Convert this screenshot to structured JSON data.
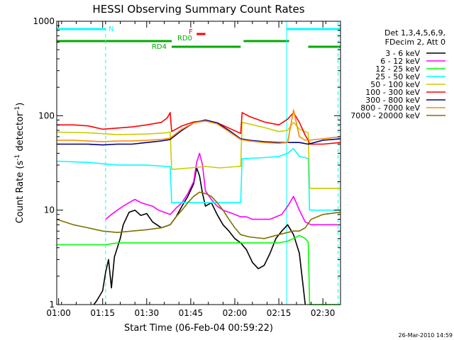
{
  "chart_data": {
    "type": "line",
    "title": "HESSI Observing Summary Count Rates",
    "xlabel": "Start Time (06-Feb-04 00:59:22)",
    "ylabel": "Count Rate (s⁻¹ detector⁻¹)",
    "ylabel_parts": [
      "Count Rate (s",
      "-1",
      " detector",
      "-1",
      ")"
    ],
    "y_scale": "log",
    "ylim": [
      1,
      1000
    ],
    "xlim": [
      "00:59:22",
      "02:36:00"
    ],
    "x_ticks": [
      "01:00",
      "01:15",
      "01:30",
      "01:45",
      "02:00",
      "02:15",
      "02:30"
    ],
    "y_ticks": [
      "1",
      "10",
      "100",
      "1000"
    ],
    "grid": false,
    "legend_position": "right",
    "legend_header": [
      "Det 1,3,4,5,6,9,",
      "FDecim 2, Att 0"
    ],
    "timestamp": "26-Mar-2010 14:59",
    "flags": [
      {
        "label": "N",
        "color": "#00ffff",
        "segments": [
          [
            "00:59:22",
            "01:16:00"
          ],
          [
            "02:17:40",
            "02:36:00"
          ]
        ]
      },
      {
        "label": "F",
        "color": "#ff0000",
        "segments": [
          [
            "01:47:00",
            "01:50:00"
          ]
        ]
      },
      {
        "label": "RD0",
        "color": "#00aa00",
        "segments": [
          [
            "00:59:22",
            "01:38:30"
          ],
          [
            "02:03:00",
            "02:18:30"
          ]
        ]
      },
      {
        "label": "RD4",
        "color": "#00aa00",
        "segments": [
          [
            "01:38:30",
            "02:02:00"
          ],
          [
            "02:25:00",
            "02:36:00"
          ]
        ]
      }
    ],
    "vlines": [
      {
        "x": "01:16:00",
        "color": "#00ffff",
        "style": "dashed"
      },
      {
        "x": "02:17:40",
        "color": "#00ffff",
        "style": "solid"
      },
      {
        "x": "02:35:10",
        "color": "#00ffff",
        "style": "dashed"
      }
    ],
    "series": [
      {
        "name": "3 - 6 keV",
        "color": "#000000",
        "x": [
          "01:12",
          "01:13",
          "01:15",
          "01:16",
          "01:17",
          "01:18",
          "01:19",
          "01:20",
          "01:21",
          "01:22",
          "01:24",
          "01:26",
          "01:28",
          "01:30",
          "01:32",
          "01:35",
          "01:38",
          "01:40",
          "01:42",
          "01:44",
          "01:46",
          "01:47",
          "01:48",
          "01:49",
          "01:50",
          "01:52",
          "01:54",
          "01:56",
          "01:58",
          "02:00",
          "02:02",
          "02:04",
          "02:06",
          "02:08",
          "02:10",
          "02:12",
          "02:14",
          "02:16",
          "02:18",
          "02:20",
          "02:22",
          "02:24"
        ],
        "y": [
          1,
          1.1,
          1.4,
          2.2,
          3,
          1.5,
          3.2,
          4,
          5,
          7,
          9.5,
          10,
          8.8,
          9.2,
          7.5,
          6.5,
          7,
          8.5,
          11,
          14,
          19,
          28,
          23,
          15,
          11,
          12,
          9,
          7,
          6,
          5,
          4.5,
          3.8,
          2.8,
          2.4,
          2.6,
          3.5,
          5,
          6,
          7,
          5.5,
          3.5,
          1
        ]
      },
      {
        "name": "6 - 12 keV",
        "color": "#ff00ff",
        "x": [
          "01:16",
          "01:18",
          "01:20",
          "01:22",
          "01:24",
          "01:26",
          "01:28",
          "01:30",
          "01:32",
          "01:34",
          "01:36",
          "01:38",
          "01:40",
          "01:42",
          "01:44",
          "01:46",
          "01:47",
          "01:48",
          "01:49",
          "01:50",
          "01:52",
          "01:54",
          "01:56",
          "01:58",
          "02:00",
          "02:02",
          "02:04",
          "02:06",
          "02:08",
          "02:10",
          "02:12",
          "02:14",
          "02:16",
          "02:18",
          "02:20",
          "02:22",
          "02:24",
          "02:26",
          "02:28",
          "02:30",
          "02:32",
          "02:34",
          "02:35"
        ],
        "y": [
          8,
          9,
          10,
          11,
          12,
          13,
          12,
          11.5,
          11,
          10,
          9.5,
          9,
          10.5,
          12,
          15,
          20,
          32,
          40,
          30,
          16,
          13,
          11,
          10,
          9.5,
          9,
          8.5,
          8.5,
          8,
          8,
          8,
          8,
          8.5,
          9,
          11,
          14,
          10,
          7.5,
          7,
          7,
          7,
          7,
          7,
          7
        ]
      },
      {
        "name": "12 - 25 keV",
        "color": "#00ff00",
        "x": [
          "00:59:22",
          "01:10",
          "01:16",
          "01:20",
          "01:25",
          "01:30",
          "01:35",
          "01:40",
          "01:45",
          "01:50",
          "01:55",
          "02:00",
          "02:05",
          "02:10",
          "02:15",
          "02:18",
          "02:20",
          "02:22",
          "02:24",
          "02:25",
          "02:25:30",
          "02:36"
        ],
        "y": [
          4.3,
          4.3,
          4.3,
          4.5,
          4.5,
          4.5,
          4.5,
          4.5,
          4.5,
          4.5,
          4.5,
          4.5,
          4.5,
          4.5,
          4.5,
          4.7,
          5,
          5.4,
          5,
          4.6,
          1,
          1
        ]
      },
      {
        "name": "25 - 50 keV",
        "color": "#00ffff",
        "x": [
          "00:59:22",
          "01:10",
          "01:20",
          "01:30",
          "01:37",
          "01:38",
          "01:38:30",
          "01:45",
          "01:50",
          "01:55",
          "02:01",
          "02:02",
          "02:02:30",
          "02:10",
          "02:15",
          "02:18",
          "02:20",
          "02:22",
          "02:24",
          "02:25",
          "02:25:30",
          "02:36"
        ],
        "y": [
          33,
          32,
          30,
          30,
          29,
          29,
          12,
          12,
          12,
          12,
          12,
          12,
          35,
          36,
          37,
          40,
          45,
          37,
          36,
          35,
          10,
          10
        ]
      },
      {
        "name": "50 - 100 keV",
        "color": "#cccc00",
        "x": [
          "00:59:22",
          "01:10",
          "01:20",
          "01:30",
          "01:37",
          "01:38",
          "01:38:30",
          "01:45",
          "01:50",
          "01:55",
          "02:01",
          "02:02",
          "02:02:30",
          "02:10",
          "02:15",
          "02:18",
          "02:20",
          "02:22",
          "02:24",
          "02:25",
          "02:25:30",
          "02:36"
        ],
        "y": [
          67,
          66,
          63,
          64,
          66,
          67,
          27,
          28,
          29,
          28,
          29,
          29,
          85,
          75,
          68,
          70,
          85,
          72,
          68,
          66,
          17,
          17
        ]
      },
      {
        "name": "100 - 300 keV",
        "color": "#ff0000",
        "x": [
          "00:59:22",
          "01:05",
          "01:10",
          "01:15",
          "01:20",
          "01:25",
          "01:30",
          "01:35",
          "01:37",
          "01:38",
          "01:38:30",
          "01:42",
          "01:46",
          "01:50",
          "01:54",
          "01:58",
          "02:01",
          "02:02",
          "02:02:30",
          "02:05",
          "02:10",
          "02:15",
          "02:18",
          "02:20",
          "02:22",
          "02:24",
          "02:25",
          "02:25:30",
          "02:30",
          "02:36"
        ],
        "y": [
          80,
          80,
          78,
          72,
          74,
          76,
          80,
          85,
          95,
          108,
          68,
          78,
          86,
          88,
          84,
          74,
          67,
          65,
          108,
          98,
          86,
          80,
          92,
          108,
          85,
          62,
          55,
          50,
          50,
          52
        ]
      },
      {
        "name": "300 - 800 keV",
        "color": "#000080",
        "x": [
          "00:59:22",
          "01:05",
          "01:10",
          "01:15",
          "01:20",
          "01:25",
          "01:30",
          "01:35",
          "01:38",
          "01:42",
          "01:46",
          "01:50",
          "01:54",
          "01:58",
          "02:02",
          "02:05",
          "02:10",
          "02:15",
          "02:18",
          "02:20",
          "02:22",
          "02:25",
          "02:30",
          "02:36"
        ],
        "y": [
          50,
          50,
          50,
          49,
          50,
          50,
          52,
          54,
          56,
          70,
          84,
          90,
          84,
          70,
          57,
          55,
          53,
          52,
          52,
          52,
          52,
          50,
          55,
          57
        ]
      },
      {
        "name": "800 - 7000 keV",
        "color": "#ff8800",
        "x": [
          "00:59:22",
          "01:05",
          "01:10",
          "01:15",
          "01:20",
          "01:25",
          "01:30",
          "01:35",
          "01:38",
          "01:42",
          "01:46",
          "01:50",
          "01:54",
          "01:58",
          "02:02",
          "02:05",
          "02:10",
          "02:15",
          "02:18",
          "02:20",
          "02:22",
          "02:24",
          "02:25",
          "02:30",
          "02:36"
        ],
        "y": [
          55,
          55,
          54,
          53,
          54,
          54,
          55,
          56,
          58,
          72,
          84,
          88,
          82,
          68,
          56,
          54,
          52,
          51,
          52,
          115,
          60,
          55,
          55,
          57,
          60
        ]
      },
      {
        "name": "7000 - 20000 keV",
        "color": "#807000",
        "x": [
          "00:59:22",
          "01:05",
          "01:10",
          "01:15",
          "01:20",
          "01:25",
          "01:30",
          "01:35",
          "01:38",
          "01:40",
          "01:42",
          "01:44",
          "01:46",
          "01:48",
          "01:50",
          "01:52",
          "01:54",
          "01:56",
          "01:58",
          "02:00",
          "02:02",
          "02:05",
          "02:10",
          "02:15",
          "02:18",
          "02:20",
          "02:22",
          "02:24",
          "02:26",
          "02:30",
          "02:36"
        ],
        "y": [
          8,
          7,
          6.5,
          6,
          5.8,
          6,
          6.2,
          6.5,
          7,
          8.5,
          10,
          12,
          14,
          15.5,
          15,
          14,
          12,
          10,
          8,
          6.5,
          5.5,
          5.2,
          5,
          5.5,
          5.8,
          6,
          6,
          6.5,
          8,
          9,
          9.5
        ]
      }
    ]
  }
}
